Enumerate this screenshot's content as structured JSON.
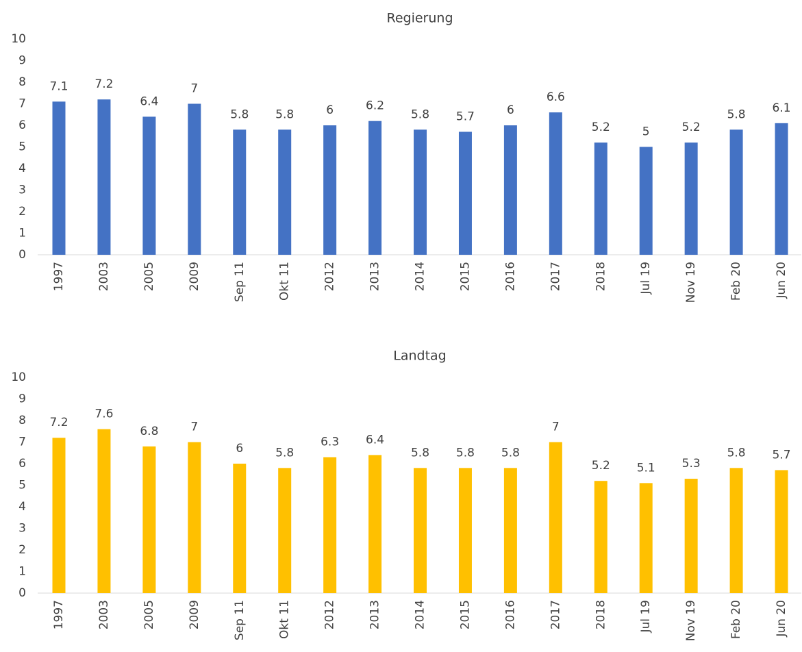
{
  "chart_data": [
    {
      "type": "bar",
      "title": "Regierung",
      "color": "#4472c4",
      "categories": [
        "1997",
        "2003",
        "2005",
        "2009",
        "Sep 11",
        "Okt 11",
        "2012",
        "2013",
        "2014",
        "2015",
        "2016",
        "2017",
        "2018",
        "Jul 19",
        "Nov 19",
        "Feb 20",
        "Jun 20"
      ],
      "values": [
        7.1,
        7.2,
        6.4,
        7,
        5.8,
        5.8,
        6,
        6.2,
        5.8,
        5.7,
        6,
        6.6,
        5.2,
        5,
        5.2,
        5.8,
        6.1
      ],
      "ylim": [
        0,
        10
      ],
      "yticks": [
        0,
        1,
        2,
        3,
        4,
        5,
        6,
        7,
        8,
        9,
        10
      ],
      "grid": false
    },
    {
      "type": "bar",
      "title": "Landtag",
      "color": "#ffc000",
      "categories": [
        "1997",
        "2003",
        "2005",
        "2009",
        "Sep 11",
        "Okt 11",
        "2012",
        "2013",
        "2014",
        "2015",
        "2016",
        "2017",
        "2018",
        "Jul 19",
        "Nov 19",
        "Feb 20",
        "Jun 20"
      ],
      "values": [
        7.2,
        7.6,
        6.8,
        7,
        6,
        5.8,
        6.3,
        6.4,
        5.8,
        5.8,
        5.8,
        7,
        5.2,
        5.1,
        5.3,
        5.8,
        5.7
      ],
      "ylim": [
        0,
        10
      ],
      "yticks": [
        0,
        1,
        2,
        3,
        4,
        5,
        6,
        7,
        8,
        9,
        10
      ],
      "grid": false
    }
  ]
}
